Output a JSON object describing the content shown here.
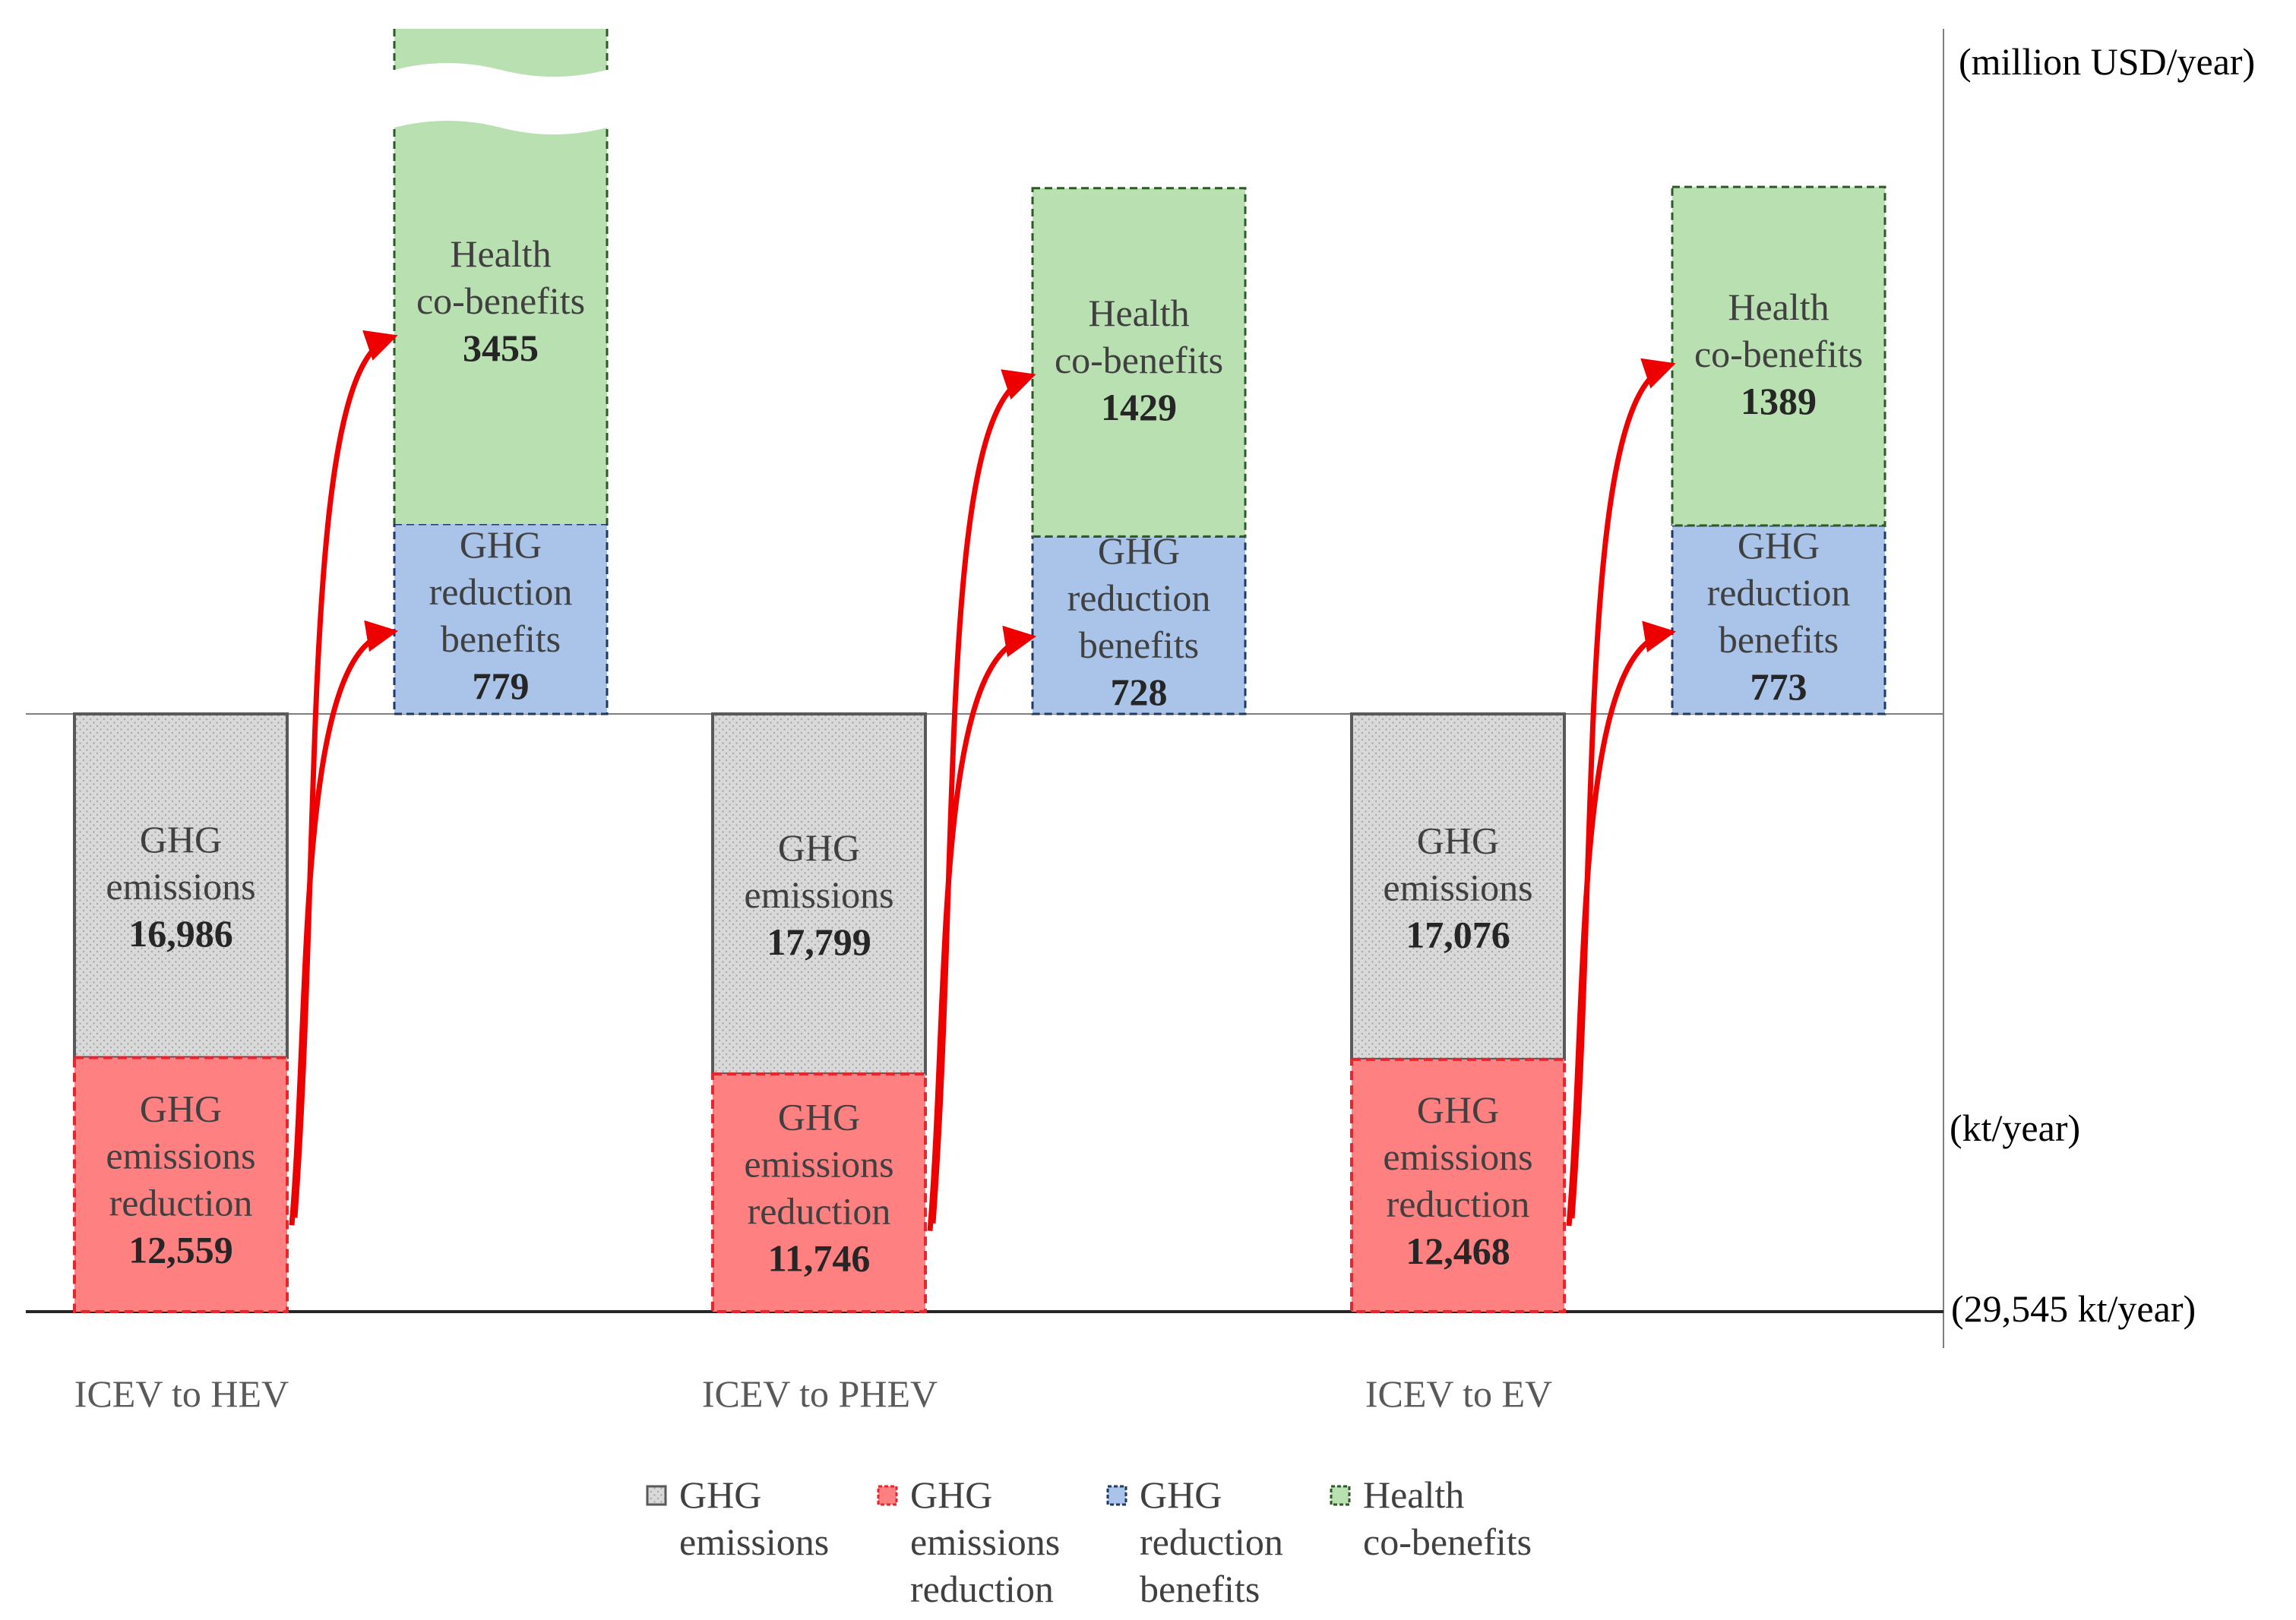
{
  "chart_data": {
    "type": "bar",
    "categories": [
      "ICEV to HEV",
      "ICEV to PHEV",
      "ICEV to EV"
    ],
    "lower_panel": {
      "unit": "(kt/year)",
      "baseline_label": "(29,545 kt/year)",
      "series": [
        {
          "key": "emissions",
          "label_lines": [
            "GHG",
            "emissions"
          ],
          "values": [
            16986,
            17799,
            17076
          ],
          "value_labels": [
            "16,986",
            "17,799",
            "17,076"
          ]
        },
        {
          "key": "reduction",
          "label_lines": [
            "GHG",
            "emissions",
            "reduction"
          ],
          "values": [
            12559,
            11746,
            12468
          ],
          "value_labels": [
            "12,559",
            "11,746",
            "12,468"
          ]
        }
      ]
    },
    "upper_panel": {
      "unit": "(million USD/year)",
      "axis_break_on_first_category": true,
      "series": [
        {
          "key": "ghg_benefits",
          "label_lines": [
            "GHG",
            "reduction",
            "benefits"
          ],
          "values": [
            779,
            728,
            773
          ],
          "value_labels": [
            "779",
            "728",
            "773"
          ]
        },
        {
          "key": "health",
          "label_lines": [
            "Health",
            "co-benefits"
          ],
          "values": [
            3455,
            1429,
            1389
          ],
          "value_labels": [
            "3455",
            "1429",
            "1389"
          ]
        }
      ]
    },
    "legend": [
      {
        "key": "emissions",
        "lines": [
          "GHG",
          "emissions"
        ]
      },
      {
        "key": "reduction",
        "lines": [
          "GHG",
          "emissions",
          "reduction"
        ]
      },
      {
        "key": "ghg_benefits",
        "lines": [
          "GHG",
          "reduction",
          "benefits"
        ]
      },
      {
        "key": "health",
        "lines": [
          "Health",
          "co-benefits"
        ]
      }
    ],
    "colors": {
      "emissions_fill": "#d3d3d3",
      "emissions_stroke": "#595959",
      "reduction_fill": "#ff8080",
      "reduction_stroke": "#e8242c",
      "benefits_fill": "#a9c4e8",
      "benefits_stroke": "#1f3864",
      "health_fill": "#b8e0b0",
      "health_stroke": "#2d5a27",
      "arrow": "#ee0000"
    }
  }
}
